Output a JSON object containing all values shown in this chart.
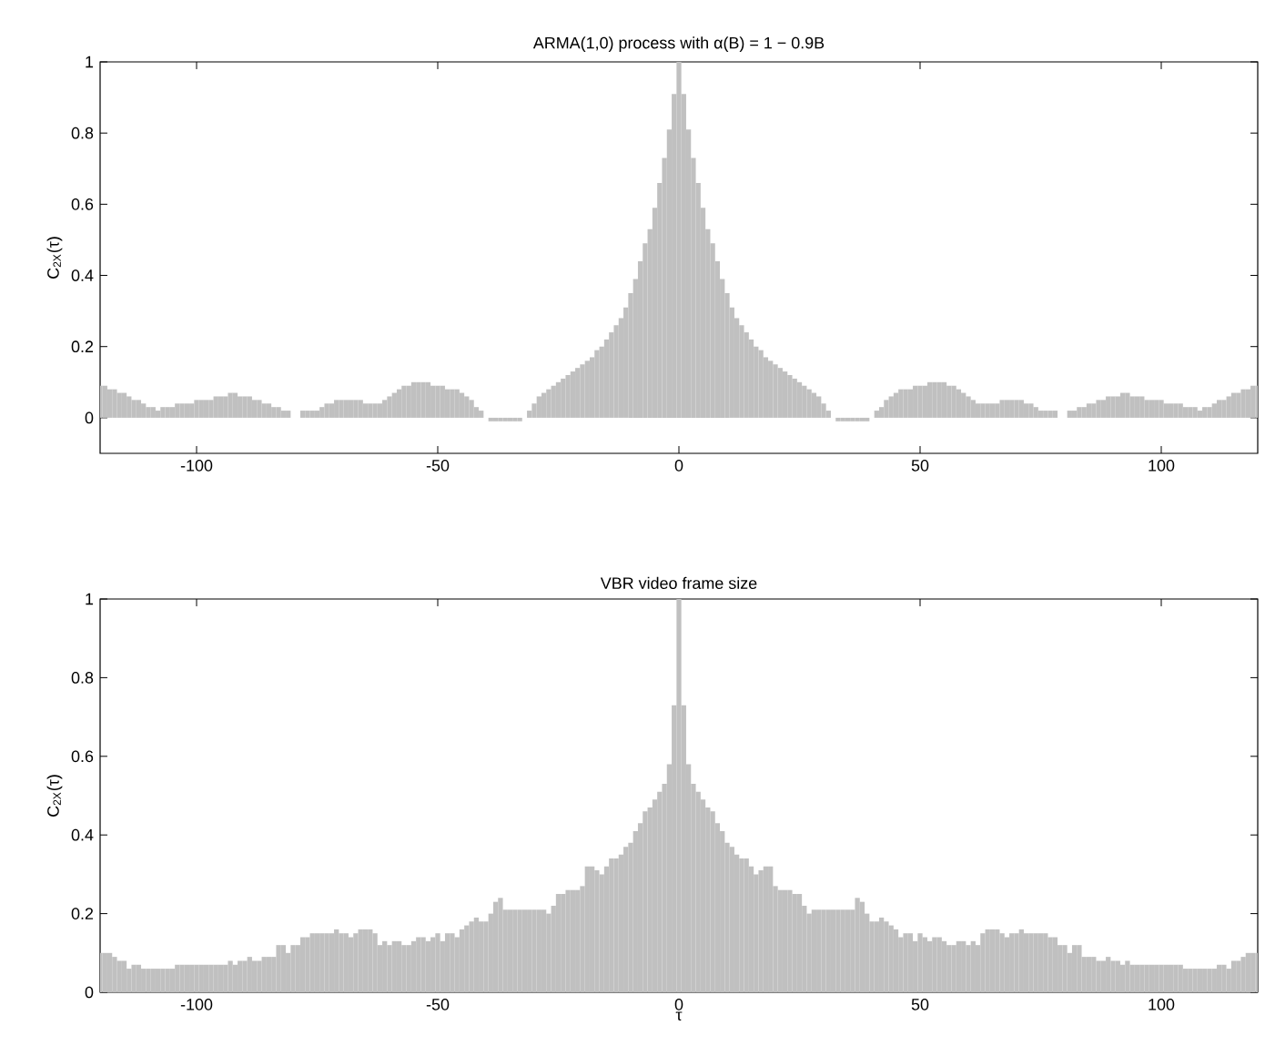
{
  "chart_data": [
    {
      "type": "bar",
      "title": "ARMA(1,0) process with α(B) = 1 − 0.9B",
      "ylabel": "C$_{2X}$(τ)",
      "color": "#c0c0c0",
      "x": [
        -120,
        -119,
        -118,
        -117,
        -116,
        -115,
        -114,
        -113,
        -112,
        -111,
        -110,
        -109,
        -108,
        -107,
        -106,
        -105,
        -104,
        -103,
        -102,
        -101,
        -100,
        -99,
        -98,
        -97,
        -96,
        -95,
        -94,
        -93,
        -92,
        -91,
        -90,
        -89,
        -88,
        -87,
        -86,
        -85,
        -84,
        -83,
        -82,
        -81,
        -80,
        -79,
        -78,
        -77,
        -76,
        -75,
        -74,
        -73,
        -72,
        -71,
        -70,
        -69,
        -68,
        -67,
        -66,
        -65,
        -64,
        -63,
        -62,
        -61,
        -60,
        -59,
        -58,
        -57,
        -56,
        -55,
        -54,
        -53,
        -52,
        -51,
        -50,
        -49,
        -48,
        -47,
        -46,
        -45,
        -44,
        -43,
        -42,
        -41,
        -40,
        -39,
        -38,
        -37,
        -36,
        -35,
        -34,
        -33,
        -32,
        -31,
        -30,
        -29,
        -28,
        -27,
        -26,
        -25,
        -24,
        -23,
        -22,
        -21,
        -20,
        -19,
        -18,
        -17,
        -16,
        -15,
        -14,
        -13,
        -12,
        -11,
        -10,
        -9,
        -8,
        -7,
        -6,
        -5,
        -4,
        -3,
        -2,
        -1,
        0,
        1,
        2,
        3,
        4,
        5,
        6,
        7,
        8,
        9,
        10,
        11,
        12,
        13,
        14,
        15,
        16,
        17,
        18,
        19,
        20,
        21,
        22,
        23,
        24,
        25,
        26,
        27,
        28,
        29,
        30,
        31,
        32,
        33,
        34,
        35,
        36,
        37,
        38,
        39,
        40,
        41,
        42,
        43,
        44,
        45,
        46,
        47,
        48,
        49,
        50,
        51,
        52,
        53,
        54,
        55,
        56,
        57,
        58,
        59,
        60,
        61,
        62,
        63,
        64,
        65,
        66,
        67,
        68,
        69,
        70,
        71,
        72,
        73,
        74,
        75,
        76,
        77,
        78,
        79,
        80,
        81,
        82,
        83,
        84,
        85,
        86,
        87,
        88,
        89,
        90,
        91,
        92,
        93,
        94,
        95,
        96,
        97,
        98,
        99,
        100,
        101,
        102,
        103,
        104,
        105,
        106,
        107,
        108,
        109,
        110,
        111,
        112,
        113,
        114,
        115,
        116,
        117,
        118,
        119,
        120
      ],
      "values": [
        0.09,
        0.09,
        0.08,
        0.08,
        0.07,
        0.07,
        0.06,
        0.05,
        0.05,
        0.04,
        0.03,
        0.03,
        0.02,
        0.03,
        0.03,
        0.03,
        0.04,
        0.04,
        0.04,
        0.04,
        0.05,
        0.05,
        0.05,
        0.05,
        0.06,
        0.06,
        0.06,
        0.07,
        0.07,
        0.06,
        0.06,
        0.06,
        0.05,
        0.05,
        0.04,
        0.04,
        0.03,
        0.03,
        0.02,
        0.02,
        0,
        0,
        0.02,
        0.02,
        0.02,
        0.02,
        0.03,
        0.04,
        0.04,
        0.05,
        0.05,
        0.05,
        0.05,
        0.05,
        0.05,
        0.04,
        0.04,
        0.04,
        0.04,
        0.05,
        0.06,
        0.07,
        0.08,
        0.09,
        0.09,
        0.1,
        0.1,
        0.1,
        0.1,
        0.09,
        0.09,
        0.09,
        0.08,
        0.08,
        0.08,
        0.07,
        0.06,
        0.05,
        0.03,
        0.02,
        0,
        -0.01,
        -0.01,
        -0.01,
        -0.01,
        -0.01,
        -0.01,
        -0.01,
        0,
        0.02,
        0.04,
        0.06,
        0.07,
        0.08,
        0.09,
        0.1,
        0.11,
        0.12,
        0.13,
        0.14,
        0.15,
        0.16,
        0.17,
        0.19,
        0.2,
        0.22,
        0.24,
        0.26,
        0.28,
        0.31,
        0.35,
        0.39,
        0.44,
        0.49,
        0.53,
        0.59,
        0.66,
        0.73,
        0.81,
        0.91,
        1,
        0.91,
        0.81,
        0.73,
        0.66,
        0.59,
        0.53,
        0.49,
        0.44,
        0.39,
        0.35,
        0.31,
        0.28,
        0.26,
        0.24,
        0.22,
        0.2,
        0.19,
        0.17,
        0.16,
        0.15,
        0.14,
        0.13,
        0.12,
        0.11,
        0.1,
        0.09,
        0.08,
        0.07,
        0.06,
        0.04,
        0.02,
        0,
        -0.01,
        -0.01,
        -0.01,
        -0.01,
        -0.01,
        -0.01,
        -0.01,
        0,
        0.02,
        0.03,
        0.05,
        0.06,
        0.07,
        0.08,
        0.08,
        0.08,
        0.09,
        0.09,
        0.09,
        0.1,
        0.1,
        0.1,
        0.1,
        0.09,
        0.09,
        0.08,
        0.07,
        0.06,
        0.05,
        0.04,
        0.04,
        0.04,
        0.04,
        0.04,
        0.05,
        0.05,
        0.05,
        0.05,
        0.05,
        0.04,
        0.04,
        0.03,
        0.02,
        0.02,
        0.02,
        0.02,
        0,
        0,
        0.02,
        0.02,
        0.03,
        0.03,
        0.04,
        0.04,
        0.05,
        0.05,
        0.06,
        0.06,
        0.06,
        0.07,
        0.07,
        0.06,
        0.06,
        0.06,
        0.05,
        0.05,
        0.05,
        0.05,
        0.04,
        0.04,
        0.04,
        0.04,
        0.03,
        0.03,
        0.03,
        0.02,
        0.03,
        0.03,
        0.04,
        0.05,
        0.05,
        0.06,
        0.07,
        0.07,
        0.08,
        0.08,
        0.09,
        0.09
      ],
      "xlim": [
        -120,
        120
      ],
      "ylim": [
        -0.1,
        1
      ],
      "xticks": [
        -100,
        -50,
        0,
        50,
        100
      ],
      "yticks": [
        0,
        0.2,
        0.4,
        0.6,
        0.8,
        1
      ]
    },
    {
      "type": "bar",
      "title": "VBR video frame size",
      "xlabel": "τ",
      "ylabel": "C$_{2X}$(τ)",
      "color": "#c0c0c0",
      "x": [
        -120,
        -119,
        -118,
        -117,
        -116,
        -115,
        -114,
        -113,
        -112,
        -111,
        -110,
        -109,
        -108,
        -107,
        -106,
        -105,
        -104,
        -103,
        -102,
        -101,
        -100,
        -99,
        -98,
        -97,
        -96,
        -95,
        -94,
        -93,
        -92,
        -91,
        -90,
        -89,
        -88,
        -87,
        -86,
        -85,
        -84,
        -83,
        -82,
        -81,
        -80,
        -79,
        -78,
        -77,
        -76,
        -75,
        -74,
        -73,
        -72,
        -71,
        -70,
        -69,
        -68,
        -67,
        -66,
        -65,
        -64,
        -63,
        -62,
        -61,
        -60,
        -59,
        -58,
        -57,
        -56,
        -55,
        -54,
        -53,
        -52,
        -51,
        -50,
        -49,
        -48,
        -47,
        -46,
        -45,
        -44,
        -43,
        -42,
        -41,
        -40,
        -39,
        -38,
        -37,
        -36,
        -35,
        -34,
        -33,
        -32,
        -31,
        -30,
        -29,
        -28,
        -27,
        -26,
        -25,
        -24,
        -23,
        -22,
        -21,
        -20,
        -19,
        -18,
        -17,
        -16,
        -15,
        -14,
        -13,
        -12,
        -11,
        -10,
        -9,
        -8,
        -7,
        -6,
        -5,
        -4,
        -3,
        -2,
        -1,
        0,
        1,
        2,
        3,
        4,
        5,
        6,
        7,
        8,
        9,
        10,
        11,
        12,
        13,
        14,
        15,
        16,
        17,
        18,
        19,
        20,
        21,
        22,
        23,
        24,
        25,
        26,
        27,
        28,
        29,
        30,
        31,
        32,
        33,
        34,
        35,
        36,
        37,
        38,
        39,
        40,
        41,
        42,
        43,
        44,
        45,
        46,
        47,
        48,
        49,
        50,
        51,
        52,
        53,
        54,
        55,
        56,
        57,
        58,
        59,
        60,
        61,
        62,
        63,
        64,
        65,
        66,
        67,
        68,
        69,
        70,
        71,
        72,
        73,
        74,
        75,
        76,
        77,
        78,
        79,
        80,
        81,
        82,
        83,
        84,
        85,
        86,
        87,
        88,
        89,
        90,
        91,
        92,
        93,
        94,
        95,
        96,
        97,
        98,
        99,
        100,
        101,
        102,
        103,
        104,
        105,
        106,
        107,
        108,
        109,
        110,
        111,
        112,
        113,
        114,
        115,
        116,
        117,
        118,
        119,
        120
      ],
      "values": [
        0.1,
        0.1,
        0.1,
        0.09,
        0.08,
        0.08,
        0.06,
        0.07,
        0.07,
        0.06,
        0.06,
        0.06,
        0.06,
        0.06,
        0.06,
        0.06,
        0.07,
        0.07,
        0.07,
        0.07,
        0.07,
        0.07,
        0.07,
        0.07,
        0.07,
        0.07,
        0.07,
        0.08,
        0.07,
        0.08,
        0.08,
        0.09,
        0.08,
        0.08,
        0.09,
        0.09,
        0.09,
        0.12,
        0.12,
        0.1,
        0.12,
        0.12,
        0.14,
        0.14,
        0.15,
        0.15,
        0.15,
        0.15,
        0.15,
        0.16,
        0.15,
        0.15,
        0.14,
        0.15,
        0.16,
        0.16,
        0.16,
        0.15,
        0.12,
        0.13,
        0.12,
        0.13,
        0.13,
        0.12,
        0.12,
        0.13,
        0.14,
        0.14,
        0.13,
        0.14,
        0.15,
        0.13,
        0.15,
        0.15,
        0.14,
        0.16,
        0.17,
        0.18,
        0.19,
        0.18,
        0.18,
        0.2,
        0.23,
        0.24,
        0.21,
        0.21,
        0.21,
        0.21,
        0.21,
        0.21,
        0.21,
        0.21,
        0.21,
        0.2,
        0.22,
        0.25,
        0.25,
        0.26,
        0.26,
        0.26,
        0.27,
        0.32,
        0.32,
        0.31,
        0.3,
        0.32,
        0.34,
        0.34,
        0.35,
        0.37,
        0.38,
        0.41,
        0.43,
        0.46,
        0.47,
        0.49,
        0.51,
        0.53,
        0.58,
        0.73,
        1,
        0.73,
        0.58,
        0.53,
        0.51,
        0.49,
        0.47,
        0.46,
        0.43,
        0.41,
        0.38,
        0.37,
        0.35,
        0.34,
        0.34,
        0.32,
        0.3,
        0.31,
        0.32,
        0.32,
        0.27,
        0.26,
        0.26,
        0.26,
        0.25,
        0.25,
        0.22,
        0.2,
        0.21,
        0.21,
        0.21,
        0.21,
        0.21,
        0.21,
        0.21,
        0.21,
        0.21,
        0.24,
        0.23,
        0.2,
        0.18,
        0.18,
        0.19,
        0.18,
        0.17,
        0.16,
        0.14,
        0.15,
        0.15,
        0.13,
        0.15,
        0.14,
        0.13,
        0.14,
        0.14,
        0.13,
        0.12,
        0.12,
        0.13,
        0.13,
        0.12,
        0.13,
        0.12,
        0.15,
        0.16,
        0.16,
        0.16,
        0.15,
        0.14,
        0.15,
        0.15,
        0.16,
        0.15,
        0.15,
        0.15,
        0.15,
        0.15,
        0.14,
        0.14,
        0.12,
        0.12,
        0.1,
        0.12,
        0.12,
        0.09,
        0.09,
        0.09,
        0.08,
        0.08,
        0.09,
        0.08,
        0.08,
        0.07,
        0.08,
        0.07,
        0.07,
        0.07,
        0.07,
        0.07,
        0.07,
        0.07,
        0.07,
        0.07,
        0.07,
        0.07,
        0.06,
        0.06,
        0.06,
        0.06,
        0.06,
        0.06,
        0.06,
        0.07,
        0.07,
        0.06,
        0.08,
        0.08,
        0.09,
        0.1,
        0.1,
        0.1
      ],
      "xlim": [
        -120,
        120
      ],
      "ylim": [
        0,
        1
      ],
      "xticks": [
        -100,
        -50,
        0,
        50,
        100
      ],
      "yticks": [
        0,
        0.2,
        0.4,
        0.6,
        0.8,
        1
      ]
    }
  ]
}
